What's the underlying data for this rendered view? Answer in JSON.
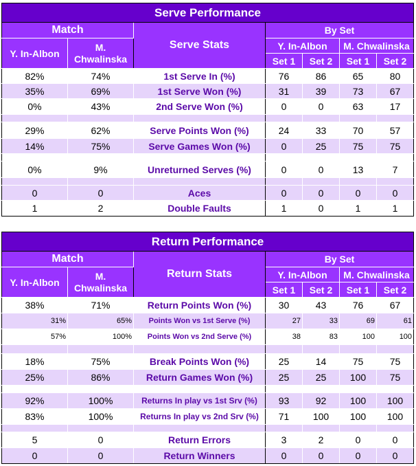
{
  "serve": {
    "title": "Serve Performance",
    "match_header": "Match",
    "stats_header": "Serve Stats",
    "byset_header": "By Set",
    "player1": "Y. In-Albon",
    "player2": "M. Chwalinska",
    "set1": "Set 1",
    "set2": "Set 2",
    "rows": [
      {
        "label": "1st Serve In (%)",
        "p1": "82%",
        "p2": "74%",
        "s1a": "76",
        "s2a": "86",
        "s1b": "65",
        "s2b": "80"
      },
      {
        "label": "1st Serve Won (%)",
        "p1": "35%",
        "p2": "69%",
        "s1a": "31",
        "s2a": "39",
        "s1b": "73",
        "s2b": "67"
      },
      {
        "label": "2nd Serve Won (%)",
        "p1": "0%",
        "p2": "43%",
        "s1a": "0",
        "s2a": "0",
        "s1b": "63",
        "s2b": "17"
      },
      {
        "label": "Serve Points Won (%)",
        "p1": "29%",
        "p2": "62%",
        "s1a": "24",
        "s2a": "33",
        "s1b": "70",
        "s2b": "57"
      },
      {
        "label": "Serve Games Won (%)",
        "p1": "14%",
        "p2": "75%",
        "s1a": "0",
        "s2a": "25",
        "s1b": "75",
        "s2b": "75"
      },
      {
        "label": "Unreturned Serves (%)",
        "p1": "0%",
        "p2": "9%",
        "s1a": "0",
        "s2a": "0",
        "s1b": "13",
        "s2b": "7"
      },
      {
        "label": "Aces",
        "p1": "0",
        "p2": "0",
        "s1a": "0",
        "s2a": "0",
        "s1b": "0",
        "s2b": "0"
      },
      {
        "label": "Double Faults",
        "p1": "1",
        "p2": "2",
        "s1a": "1",
        "s2a": "0",
        "s1b": "1",
        "s2b": "1"
      }
    ]
  },
  "ret": {
    "title": "Return Performance",
    "match_header": "Match",
    "stats_header": "Return Stats",
    "byset_header": "By Set",
    "player1": "Y. In-Albon",
    "player2": "M. Chwalinska",
    "set1": "Set 1",
    "set2": "Set 2",
    "rows": [
      {
        "label": "Return Points Won (%)",
        "p1": "38%",
        "p2": "71%",
        "s1a": "30",
        "s2a": "43",
        "s1b": "76",
        "s2b": "67"
      },
      {
        "label": "Points Won vs 1st Serve (%)",
        "p1": "31%",
        "p2": "65%",
        "s1a": "27",
        "s2a": "33",
        "s1b": "69",
        "s2b": "61"
      },
      {
        "label": "Points Won vs 2nd Serve (%)",
        "p1": "57%",
        "p2": "100%",
        "s1a": "38",
        "s2a": "83",
        "s1b": "100",
        "s2b": "100"
      },
      {
        "label": "Break Points Won (%)",
        "p1": "18%",
        "p2": "75%",
        "s1a": "25",
        "s2a": "14",
        "s1b": "75",
        "s2b": "75"
      },
      {
        "label": "Return Games Won (%)",
        "p1": "25%",
        "p2": "86%",
        "s1a": "25",
        "s2a": "25",
        "s1b": "100",
        "s2b": "75"
      },
      {
        "label": "Returns In play vs 1st Srv (%)",
        "p1": "92%",
        "p2": "100%",
        "s1a": "93",
        "s2a": "92",
        "s1b": "100",
        "s2b": "100"
      },
      {
        "label": "Returns In play vs 2nd Srv (%)",
        "p1": "83%",
        "p2": "100%",
        "s1a": "71",
        "s2a": "100",
        "s1b": "100",
        "s2b": "100"
      },
      {
        "label": "Return Errors",
        "p1": "5",
        "p2": "0",
        "s1a": "3",
        "s2a": "2",
        "s1b": "0",
        "s2b": "0"
      },
      {
        "label": "Return Winners",
        "p1": "0",
        "p2": "0",
        "s1a": "0",
        "s2a": "0",
        "s1b": "0",
        "s2b": "0"
      }
    ]
  }
}
